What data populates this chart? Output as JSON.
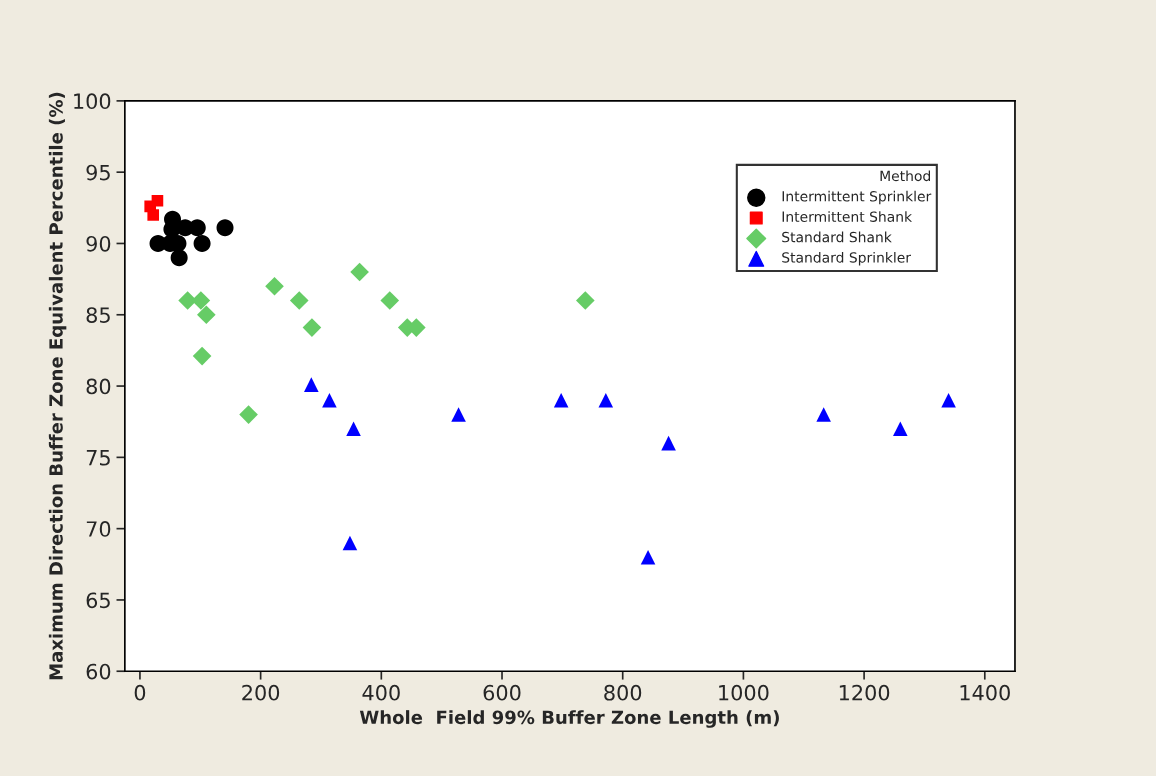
{
  "chart_data": {
    "type": "scatter",
    "xlabel": "Whole  Field 99% Buffer Zone Length (m)",
    "ylabel": "Maximum Direction Buffer Zone Equivalent Percentile (%)",
    "legend_title": "Method",
    "legend": "top right",
    "grid": false,
    "xlim": [
      -25,
      1450
    ],
    "xticks": [
      0,
      200,
      400,
      600,
      800,
      1000,
      1200,
      1400
    ],
    "ylim": [
      60,
      100
    ],
    "yticks": [
      60,
      65,
      70,
      75,
      80,
      85,
      90,
      95,
      100
    ],
    "series": [
      {
        "name": "Intermittent Sprinkler",
        "color": "#000000",
        "marker": "circle",
        "x": [
          54,
          53,
          75,
          95,
          30,
          50,
          63,
          103,
          65,
          141
        ],
        "values": [
          91.7,
          91,
          91.1,
          91.1,
          90,
          90,
          90,
          90,
          89,
          91.1
        ]
      },
      {
        "name": "Intermittent Shank",
        "color": "#ff0000",
        "marker": "square",
        "x": [
          17,
          29,
          22
        ],
        "values": [
          92.6,
          93,
          92
        ]
      },
      {
        "name": "Standard Shank",
        "color": "#66cc66",
        "marker": "diamond",
        "x": [
          79,
          101,
          110,
          103,
          223,
          264,
          285,
          364,
          414,
          443,
          458,
          738,
          180
        ],
        "values": [
          86,
          86,
          85,
          82.1,
          87,
          86,
          84.1,
          88,
          86,
          84.1,
          84.1,
          86,
          78
        ]
      },
      {
        "name": "Standard Sprinkler",
        "color": "#0000ff",
        "marker": "triangle",
        "x": [
          284,
          314,
          354,
          528,
          698,
          772,
          876,
          348,
          842,
          1133,
          1260,
          1340
        ],
        "values": [
          80.1,
          79,
          77,
          78,
          79,
          79,
          76,
          69,
          68,
          78,
          77,
          79
        ]
      }
    ]
  }
}
